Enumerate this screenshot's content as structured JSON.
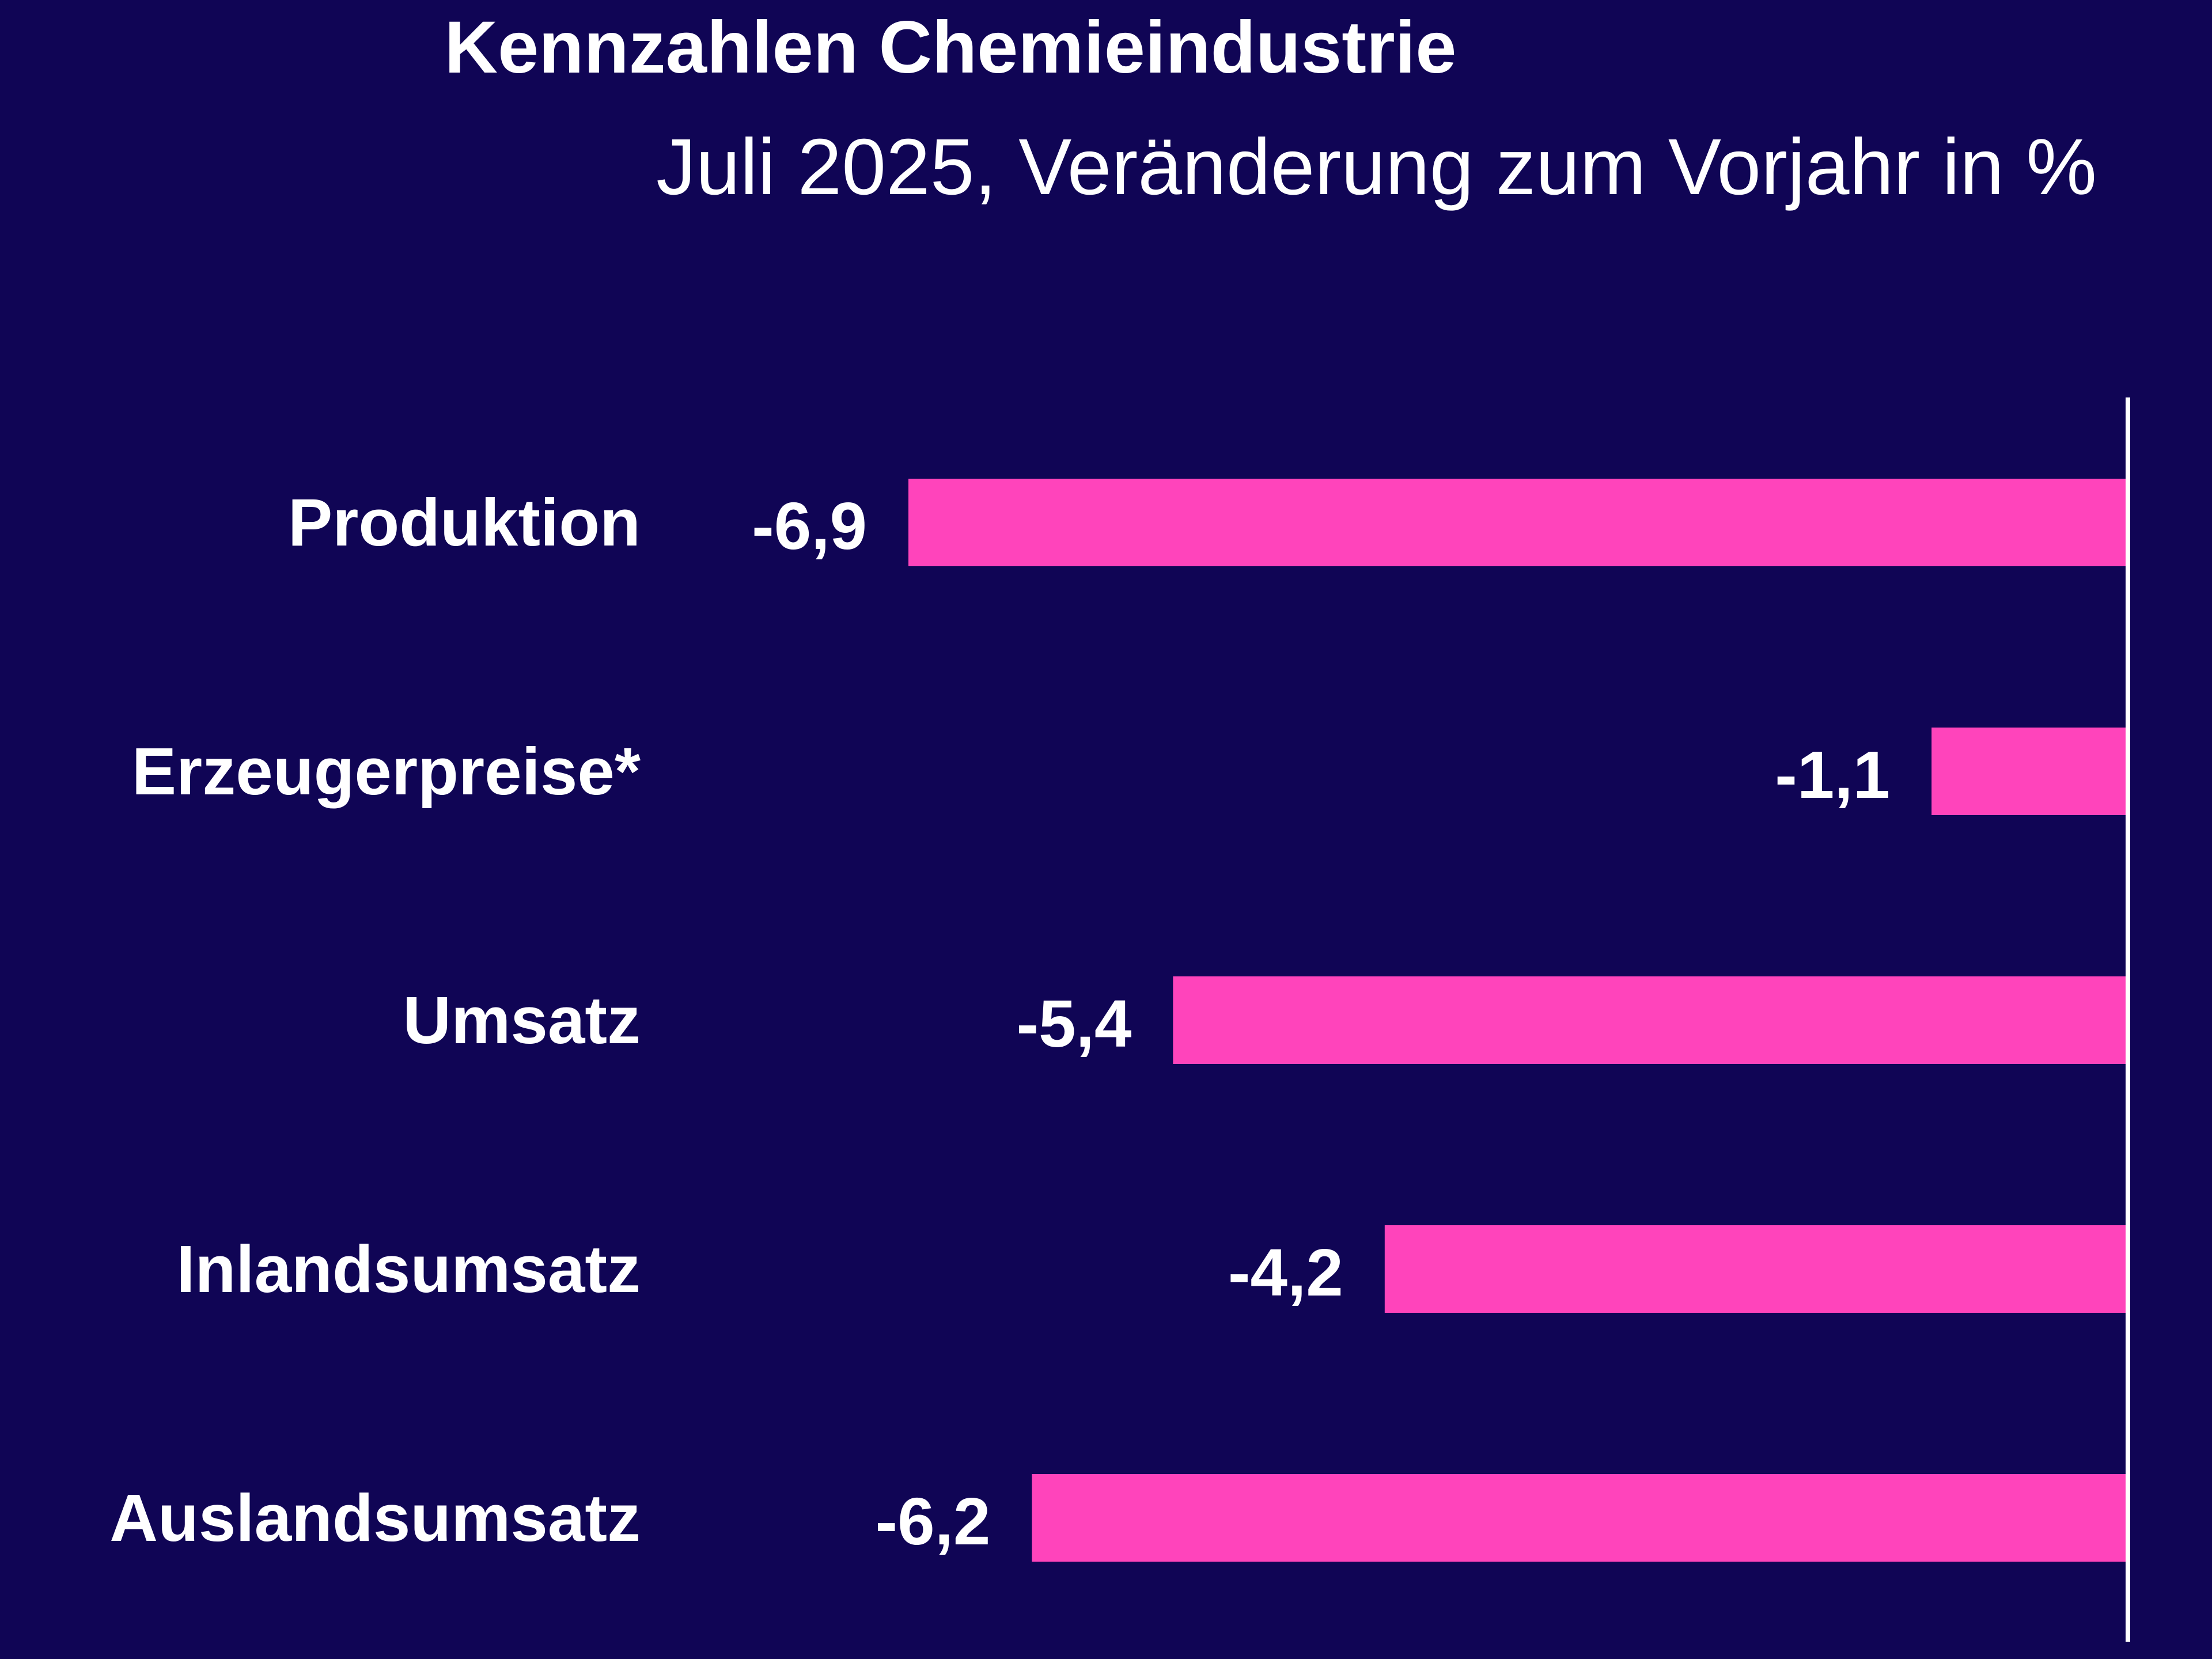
{
  "chart_data": {
    "type": "bar",
    "orientation": "horizontal",
    "title": "Kennzahlen Chemieindustrie",
    "subtitle": "Juli 2025, Veränderung zum Vorjahr in %",
    "categories": [
      "Produktion",
      "Erzeugerpreise*",
      "Umsatz",
      "Inlandsumsatz",
      "Auslandsumsatz"
    ],
    "values": [
      -6.9,
      -1.1,
      -5.4,
      -4.2,
      -6.2
    ],
    "value_labels": [
      "-6,9",
      "-1,1",
      "-5,4",
      "-4,2",
      "-6,2"
    ],
    "xlim": [
      -6.9,
      0
    ],
    "grid": false,
    "bar_color": "#FF44BB",
    "background_color": "#100555",
    "axis_color": "#FFFFFF"
  }
}
